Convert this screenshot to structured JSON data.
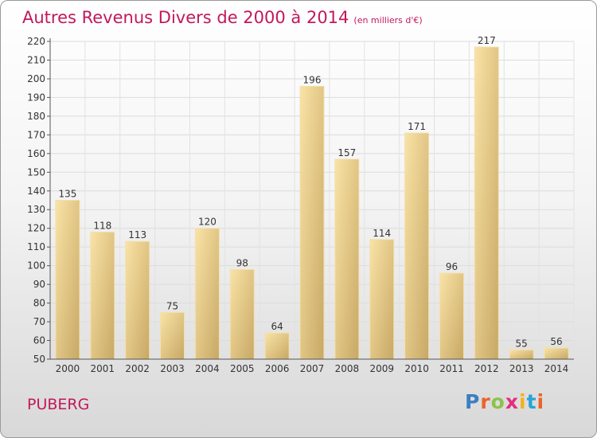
{
  "title": "Autres Revenus Divers de 2000 à 2014",
  "unit": "(en milliers d'€)",
  "city": "PUBERG",
  "logo": {
    "text": "Proxiti",
    "colors": [
      "#3a7fc1",
      "#e8642b",
      "#8bc34a",
      "#e52d7d",
      "#f2b21b",
      "#29a3d8",
      "#e8642b"
    ]
  },
  "chart_data": {
    "type": "bar",
    "categories": [
      "2000",
      "2001",
      "2002",
      "2003",
      "2004",
      "2005",
      "2006",
      "2007",
      "2008",
      "2009",
      "2010",
      "2011",
      "2012",
      "2013",
      "2014"
    ],
    "values": [
      135,
      118,
      113,
      75,
      120,
      98,
      64,
      196,
      157,
      114,
      171,
      96,
      217,
      55,
      56
    ],
    "ylim": [
      50,
      220
    ],
    "yticks": [
      50,
      60,
      70,
      80,
      90,
      100,
      110,
      120,
      130,
      140,
      150,
      160,
      170,
      180,
      190,
      200,
      210,
      220
    ],
    "grid": true,
    "bar_color": "#e2c57b"
  }
}
